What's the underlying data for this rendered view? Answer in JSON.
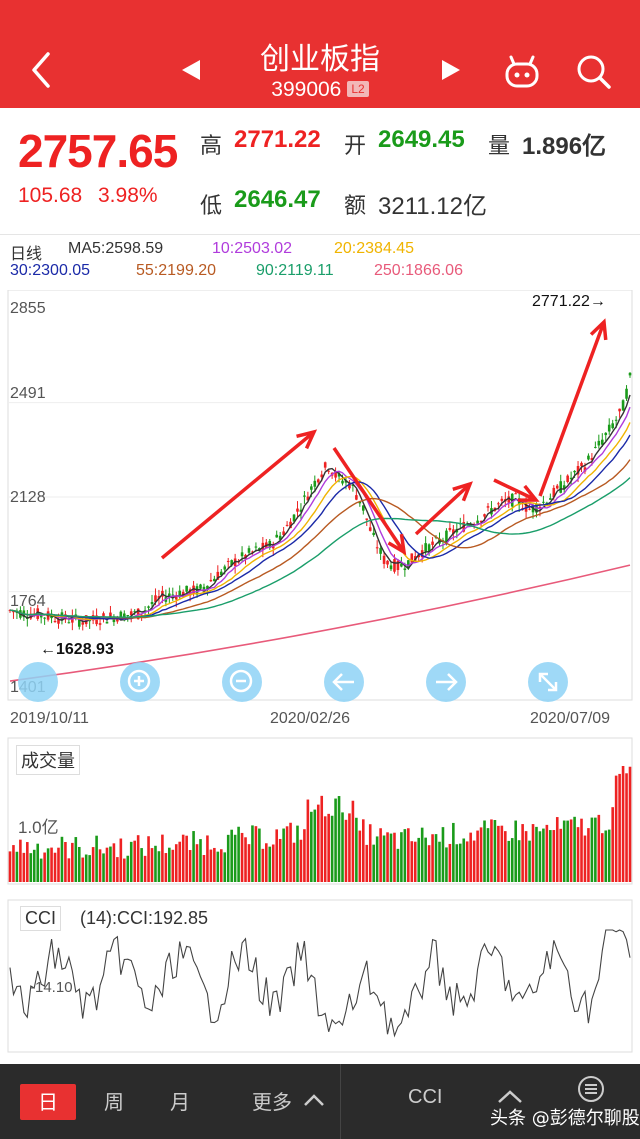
{
  "header": {
    "title": "创业板指",
    "code": "399006",
    "badge": "L2"
  },
  "quote": {
    "price": "2757.65",
    "change": "105.68",
    "change_pct": "3.98%",
    "high_label": "高",
    "high": "2771.22",
    "low_label": "低",
    "low": "2646.47",
    "open_label": "开",
    "open": "2649.45",
    "amount_label": "额",
    "amount": "3211.12亿",
    "volume_label": "量",
    "volume": "1.896亿"
  },
  "ma": {
    "title": "日线",
    "ma5": "MA5:2598.59",
    "ma10": "10:2503.02",
    "ma20": "20:2384.45",
    "ma30": "30:2300.05",
    "ma55": "55:2199.20",
    "ma90": "90:2119.11",
    "ma250": "250:1866.06",
    "colors": {
      "ma5": "#333333",
      "ma10": "#b03cdc",
      "ma20": "#f0b400",
      "ma30": "#1b2aa8",
      "ma55": "#b85a22",
      "ma90": "#1a9e6a",
      "ma250": "#e85a7a"
    }
  },
  "chart": {
    "y_ticks": [
      "2855",
      "2491",
      "2128",
      "1764",
      "1401"
    ],
    "high_marker": "2771.22→",
    "low_marker": "←1628.93",
    "dates": [
      "2019/10/11",
      "2020/02/26",
      "2020/07/09"
    ]
  },
  "volume": {
    "label": "成交量",
    "tick": "1.0亿"
  },
  "cci": {
    "label": "CCI",
    "value": "(14):CCI:192.85",
    "tick": "-14.10"
  },
  "bottom": {
    "day": "日",
    "week": "周",
    "month": "月",
    "more": "更多",
    "indicator": "CCI",
    "watermark": "头条 @彭德尔聊股"
  }
}
